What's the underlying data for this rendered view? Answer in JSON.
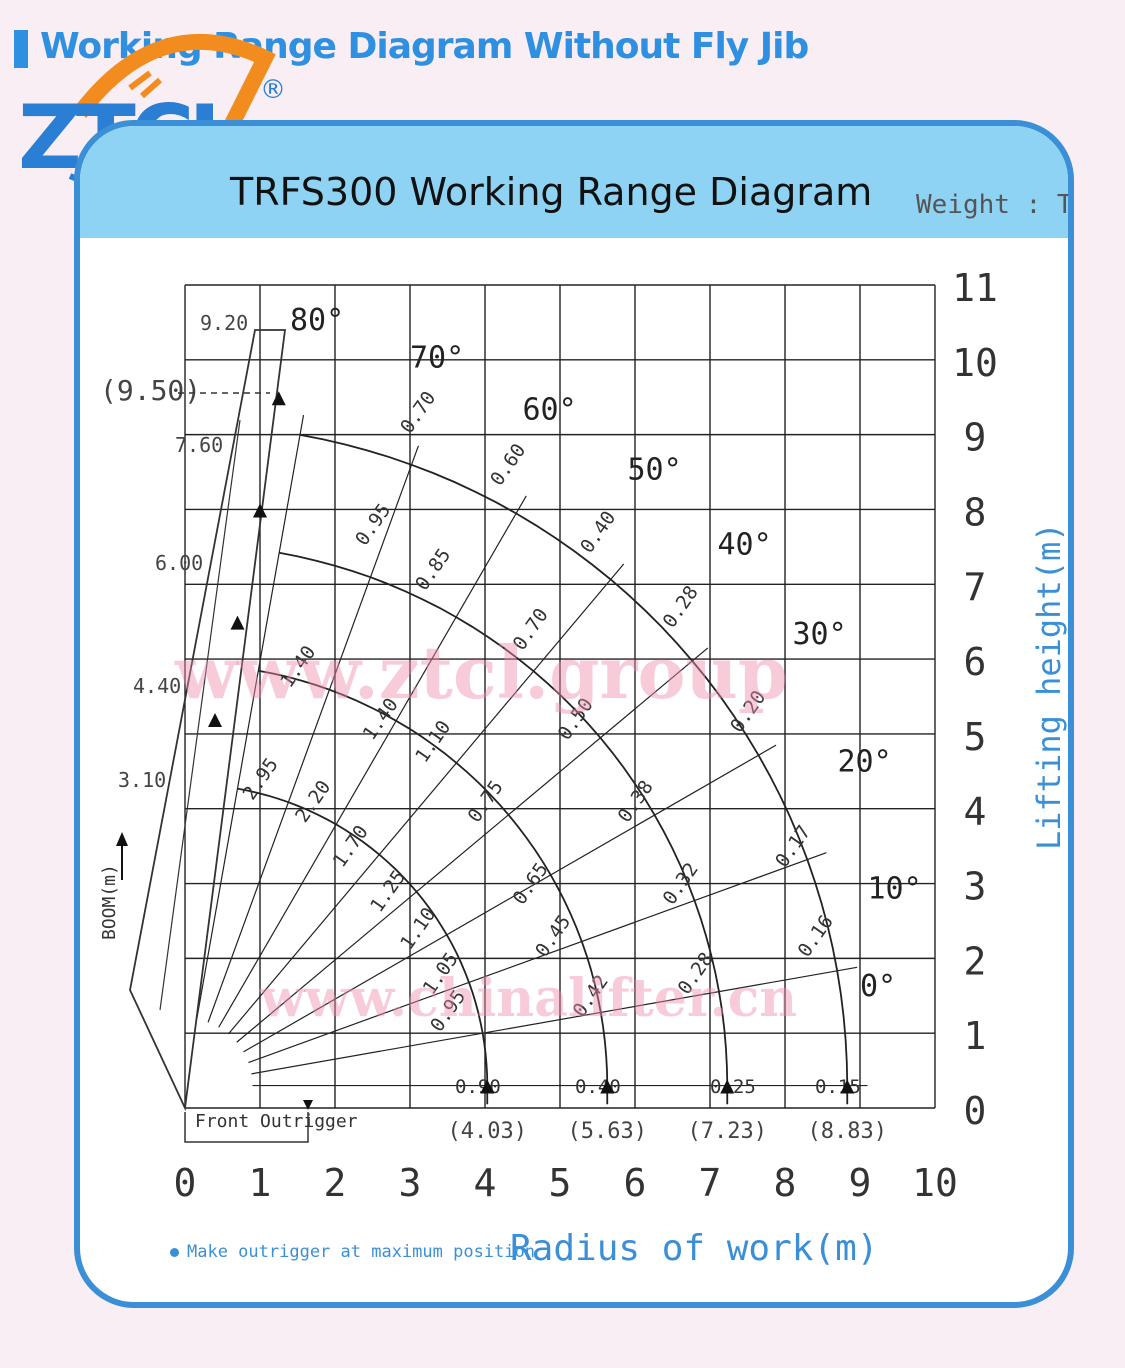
{
  "header": {
    "title": "Working Range Diagram Without Fly Jib"
  },
  "logo": {
    "text": "ZTCL",
    "registered": "®"
  },
  "card": {
    "title": "TRFS300  Working Range Diagram",
    "weight_unit": "Weight : T"
  },
  "note": "Make outrigger at maximum position",
  "watermarks": [
    "www.ztcl.group",
    "www.chinalifter.cn"
  ],
  "colors": {
    "accent": "#3b8fd6",
    "header_bg": "#8fd3f4",
    "logo_orange": "#f28c1e",
    "logo_blue": "#2a7fd4"
  },
  "chart_data": {
    "type": "diagram",
    "title": "TRFS300  Working Range Diagram",
    "xlabel": "Radius of work(m)",
    "ylabel": "Lifting height(m)",
    "boom_label": "BOOM(m)",
    "outrigger_label": "Front Outrigger",
    "xlim": [
      0,
      10
    ],
    "ylim": [
      0,
      11
    ],
    "x_ticks": [
      "0",
      "1",
      "2",
      "3",
      "4",
      "5",
      "6",
      "7",
      "8",
      "9",
      "10"
    ],
    "y_ticks": [
      "0",
      "1",
      "2",
      "3",
      "4",
      "5",
      "6",
      "7",
      "8",
      "9",
      "10",
      "11"
    ],
    "boom_lengths": [
      "9.20",
      "(9.50)",
      "7.60",
      "6.00",
      "4.40",
      "3.10"
    ],
    "angles": [
      "80°",
      "70°",
      "60°",
      "50°",
      "40°",
      "30°",
      "20°",
      "10°",
      "0°"
    ],
    "max_radius_labels": [
      "(4.03)",
      "(5.63)",
      "(7.23)",
      "(8.83)"
    ],
    "capacities": [
      {
        "text": "0.70",
        "x": 3.0,
        "y": 9.0
      },
      {
        "text": "0.60",
        "x": 4.2,
        "y": 8.3
      },
      {
        "text": "0.40",
        "x": 5.4,
        "y": 7.4
      },
      {
        "text": "0.28",
        "x": 6.5,
        "y": 6.4
      },
      {
        "text": "0.20",
        "x": 7.4,
        "y": 5.0
      },
      {
        "text": "0.17",
        "x": 8.0,
        "y": 3.2
      },
      {
        "text": "0.16",
        "x": 8.3,
        "y": 2.0
      },
      {
        "text": "0.15",
        "x": 8.4,
        "y": 0.2
      },
      {
        "text": "0.95",
        "x": 2.4,
        "y": 7.5
      },
      {
        "text": "0.85",
        "x": 3.2,
        "y": 6.9
      },
      {
        "text": "0.70",
        "x": 4.5,
        "y": 6.1
      },
      {
        "text": "0.50",
        "x": 5.1,
        "y": 4.9
      },
      {
        "text": "0.38",
        "x": 5.9,
        "y": 3.8
      },
      {
        "text": "0.32",
        "x": 6.5,
        "y": 2.7
      },
      {
        "text": "0.28",
        "x": 6.7,
        "y": 1.5
      },
      {
        "text": "0.25",
        "x": 7.0,
        "y": 0.2
      },
      {
        "text": "1.40",
        "x": 1.4,
        "y": 5.6
      },
      {
        "text": "1.40",
        "x": 2.5,
        "y": 4.9
      },
      {
        "text": "1.10",
        "x": 3.2,
        "y": 4.6
      },
      {
        "text": "0.75",
        "x": 3.9,
        "y": 3.8
      },
      {
        "text": "0.65",
        "x": 4.5,
        "y": 2.7
      },
      {
        "text": "0.45",
        "x": 4.8,
        "y": 2.0
      },
      {
        "text": "0.42",
        "x": 5.3,
        "y": 1.2
      },
      {
        "text": "0.40",
        "x": 5.2,
        "y": 0.2
      },
      {
        "text": "2.95",
        "x": 0.9,
        "y": 4.1
      },
      {
        "text": "2.20",
        "x": 1.6,
        "y": 3.8
      },
      {
        "text": "1.70",
        "x": 2.1,
        "y": 3.2
      },
      {
        "text": "1.25",
        "x": 2.6,
        "y": 2.6
      },
      {
        "text": "1.10",
        "x": 3.0,
        "y": 2.1
      },
      {
        "text": "1.05",
        "x": 3.3,
        "y": 1.5
      },
      {
        "text": "0.95",
        "x": 3.4,
        "y": 1.0
      },
      {
        "text": "0.90",
        "x": 3.6,
        "y": 0.2
      }
    ]
  }
}
